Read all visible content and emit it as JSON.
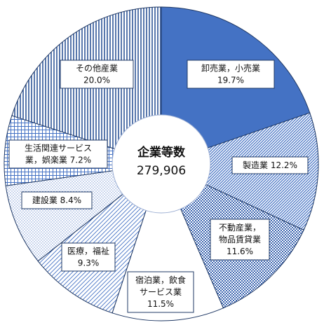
{
  "chart_data": {
    "type": "pie",
    "center": {
      "title": "企業等数",
      "value": "279,906"
    },
    "slices": [
      {
        "lines": [
          "卸売業，小売業",
          "19.7%"
        ],
        "value": 19.7,
        "pattern": "solid",
        "color": "#4472c4"
      },
      {
        "lines": [
          "製造業 12.2%"
        ],
        "value": 12.2,
        "pattern": "diagonal",
        "color": "#4472c4"
      },
      {
        "lines": [
          "不動産業，",
          "物品賃貸業",
          "11.6%"
        ],
        "value": 11.6,
        "pattern": "check",
        "color": "#4472c4"
      },
      {
        "lines": [
          "宿泊業，飲食",
          "サービス業",
          "11.5%"
        ],
        "value": 11.5,
        "pattern": "white",
        "color": "#ffffff"
      },
      {
        "lines": [
          "医療，福祉",
          "9.3%"
        ],
        "value": 9.3,
        "pattern": "diag-lines",
        "color": "#4472c4"
      },
      {
        "lines": [
          "建設業 8.4%"
        ],
        "value": 8.4,
        "pattern": "dots",
        "color": "#4472c4"
      },
      {
        "lines": [
          "生活関連サービス",
          "業，娯楽業 7.2%"
        ],
        "value": 7.2,
        "pattern": "grid",
        "color": "#4472c4"
      },
      {
        "lines": [
          "その他産業",
          "20.0%"
        ],
        "value": 20.0,
        "pattern": "vertical",
        "color": "#4472c4"
      }
    ]
  }
}
